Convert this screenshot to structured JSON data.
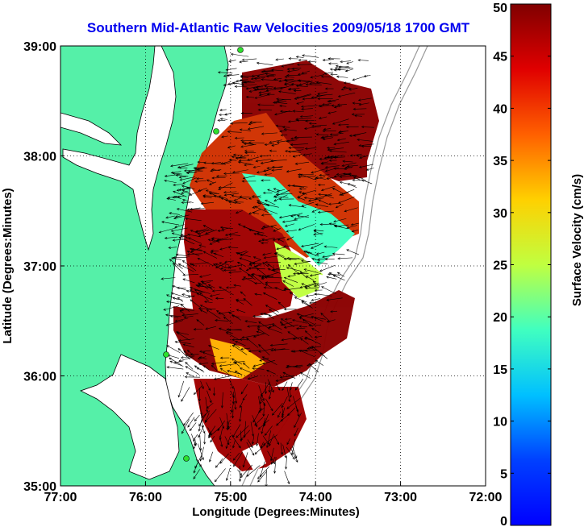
{
  "chart_data": {
    "type": "heatmap",
    "title": "Southern Mid-Atlantic Raw Velocities 2009/05/18 1700 GMT",
    "xlabel": "Longitude (Degrees:Minutes)",
    "ylabel": "Latitude (Degrees:Minutes)",
    "xlim": [
      -77,
      -72
    ],
    "ylim": [
      35,
      39
    ],
    "x_ticks": [
      {
        "value": -77,
        "label": "77:00"
      },
      {
        "value": -76,
        "label": "76:00"
      },
      {
        "value": -75,
        "label": "75:00"
      },
      {
        "value": -74,
        "label": "74:00"
      },
      {
        "value": -73,
        "label": "73:00"
      },
      {
        "value": -72,
        "label": "72:00"
      }
    ],
    "y_ticks": [
      {
        "value": 35,
        "label": "35:00"
      },
      {
        "value": 36,
        "label": "36:00"
      },
      {
        "value": 37,
        "label": "37:00"
      },
      {
        "value": 38,
        "label": "38:00"
      },
      {
        "value": 39,
        "label": "39:00"
      }
    ],
    "grid": "dotted",
    "colorbar": {
      "label": "Surface Velocity (cm/s)",
      "range": [
        0,
        50
      ],
      "ticks": [
        {
          "value": 0,
          "label": "0"
        },
        {
          "value": 5,
          "label": "5"
        },
        {
          "value": 10,
          "label": "10"
        },
        {
          "value": 15,
          "label": "15"
        },
        {
          "value": 20,
          "label": "20"
        },
        {
          "value": 25,
          "label": "25"
        },
        {
          "value": 30,
          "label": "30"
        },
        {
          "value": 35,
          "label": "35"
        },
        {
          "value": 40,
          "label": "40"
        },
        {
          "value": 45,
          "label": "45"
        },
        {
          "value": 50,
          "label": "50"
        }
      ],
      "colormap": "jet"
    },
    "colors": {
      "title": "#0000ee",
      "land": "#55f0a8",
      "coastline": "#000000",
      "bathymetry": "#999999"
    }
  }
}
